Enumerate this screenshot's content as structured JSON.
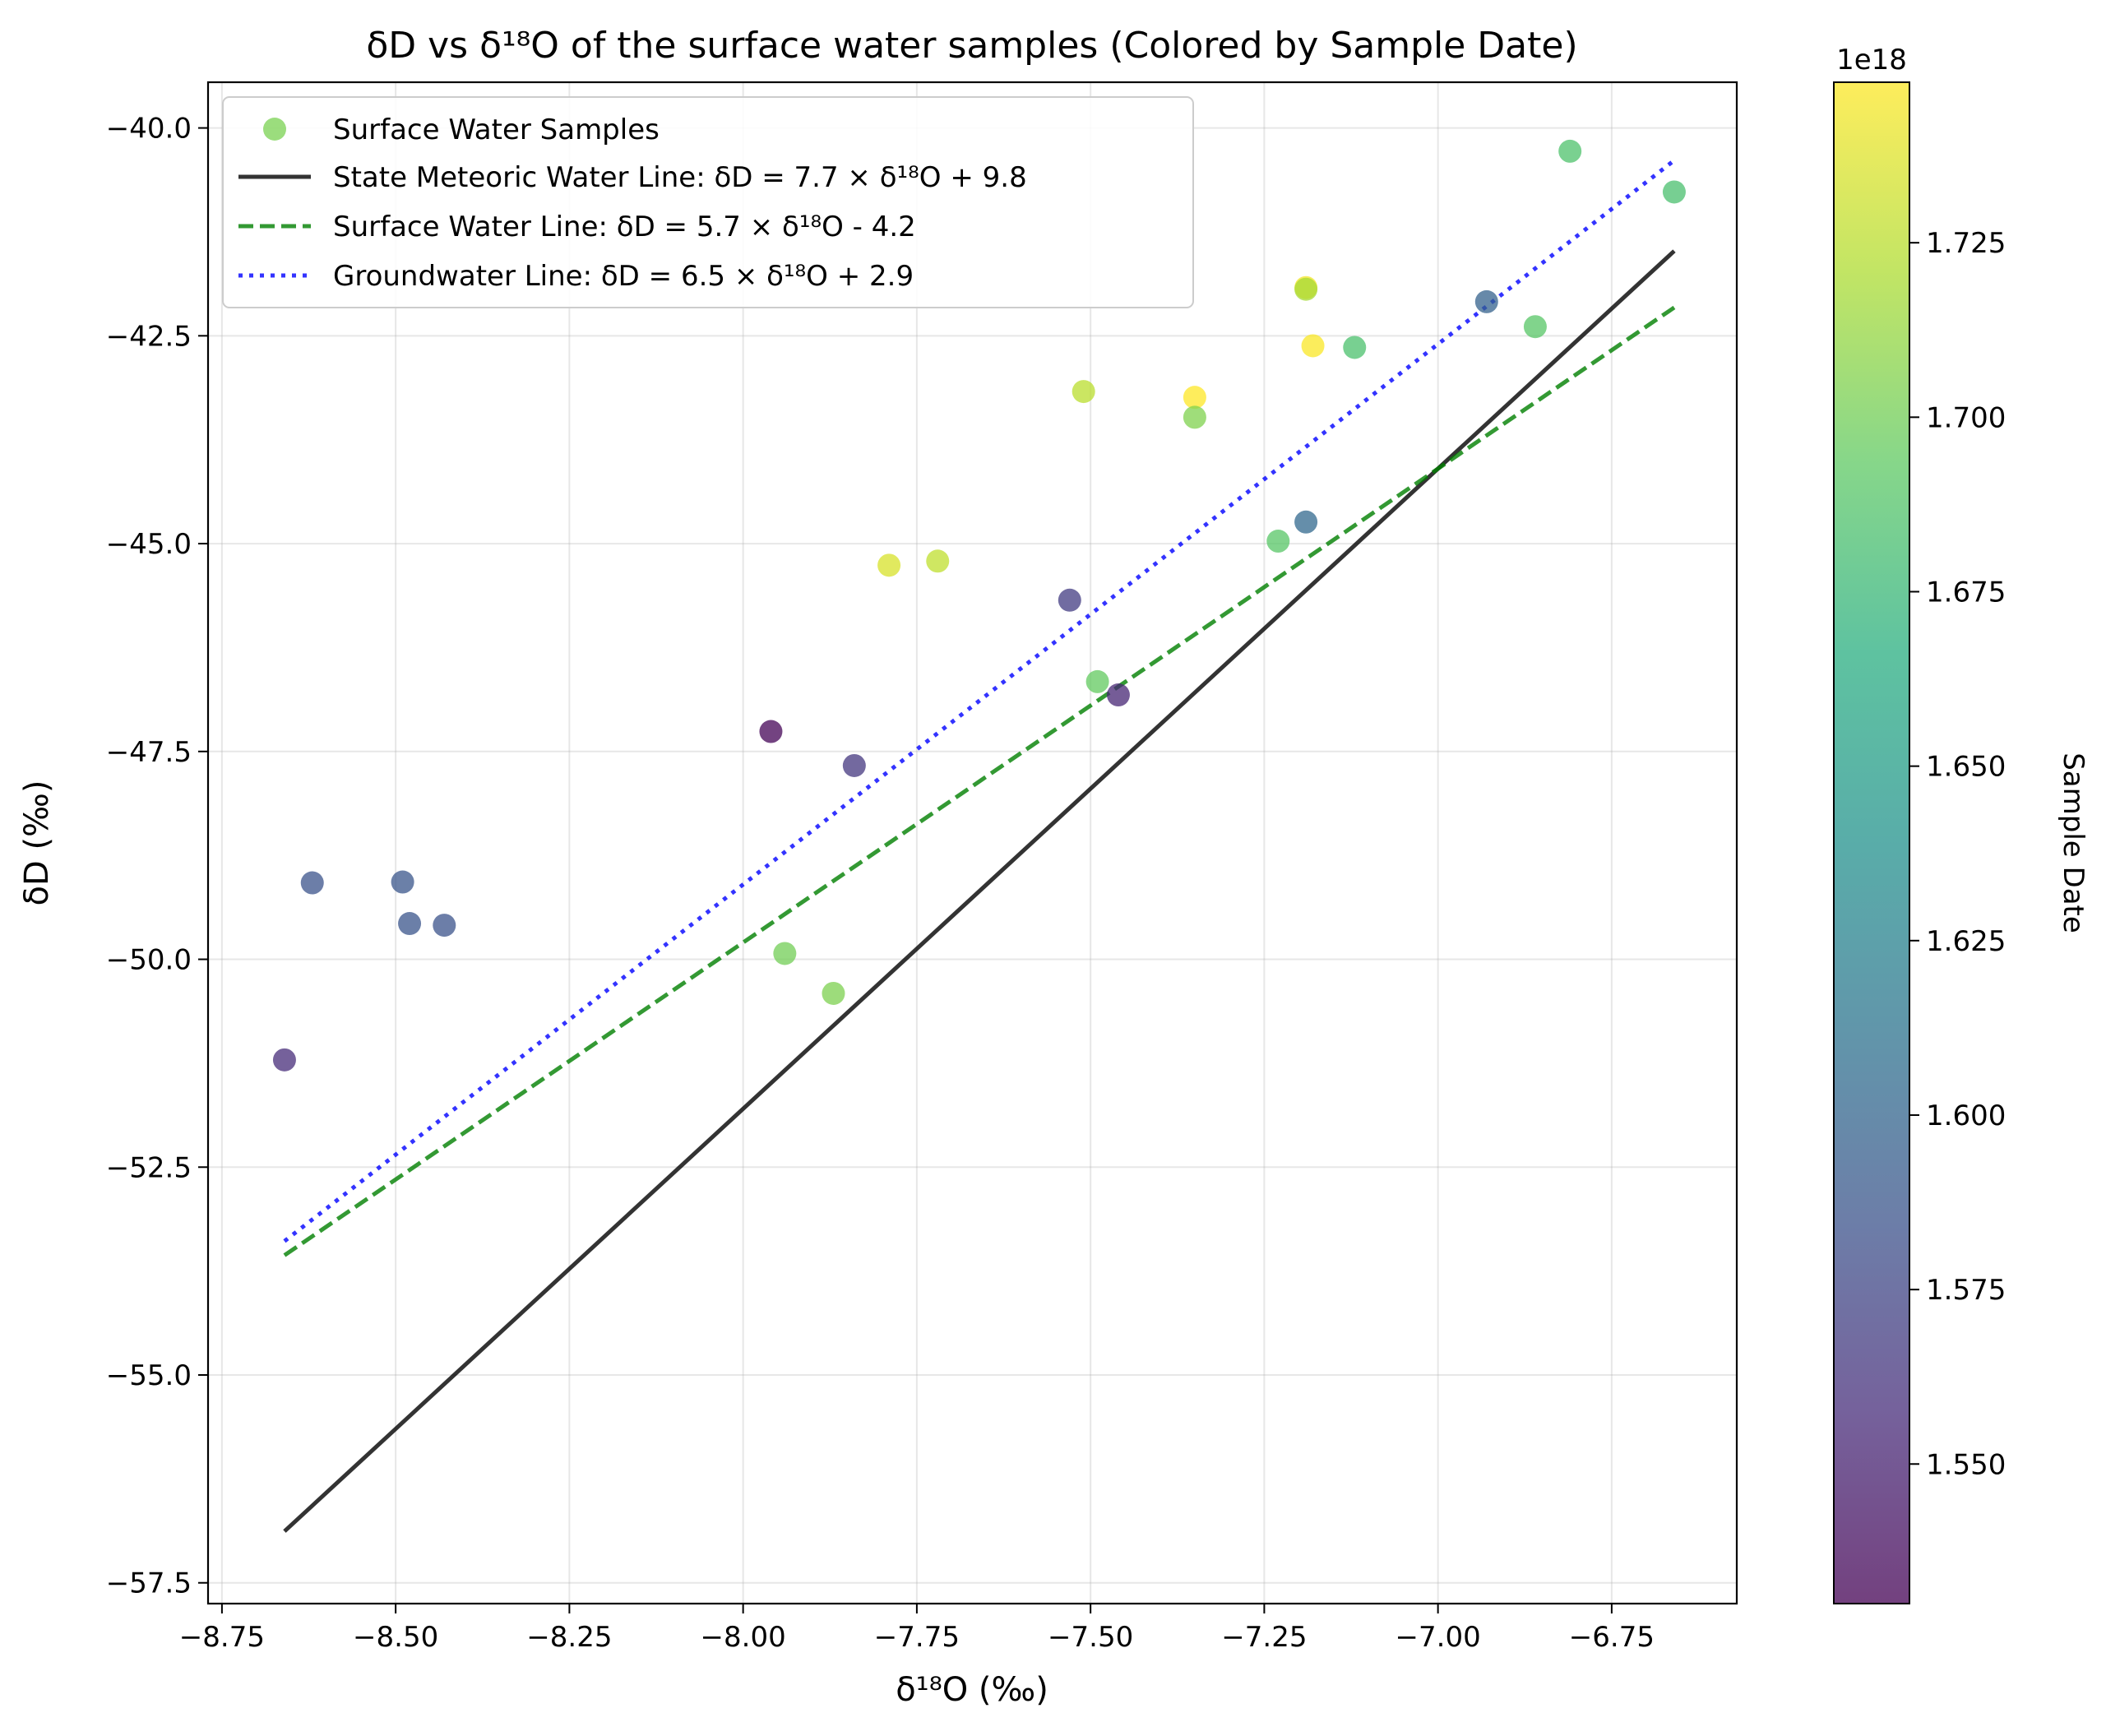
{
  "chart_data": {
    "type": "scatter",
    "title": "δD vs δ¹⁸O of the surface water samples (Colored by Sample Date)",
    "xlabel": "δ¹⁸O (‰)",
    "ylabel": "δD (‰)",
    "xlim": [
      -8.77,
      -6.57
    ],
    "ylim": [
      -57.75,
      -39.45
    ],
    "xticks": [
      -8.75,
      -8.5,
      -8.25,
      -8.0,
      -7.75,
      -7.5,
      -7.25,
      -7.0,
      -6.75
    ],
    "xtick_labels": [
      "−8.75",
      "−8.50",
      "−8.25",
      "−8.00",
      "−7.75",
      "−7.50",
      "−7.25",
      "−7.00",
      "−6.75"
    ],
    "yticks": [
      -57.5,
      -55.0,
      -52.5,
      -50.0,
      -47.5,
      -45.0,
      -42.5,
      -40.0
    ],
    "ytick_labels": [
      "−57.5",
      "−55.0",
      "−52.5",
      "−50.0",
      "−47.5",
      "−45.0",
      "−42.5",
      "−40.0"
    ],
    "grid": true,
    "legend_position": "top-left",
    "legend": [
      {
        "label": "Surface Water Samples",
        "style": "marker",
        "color": "#7ad151"
      },
      {
        "label": "State Meteoric Water Line: δD = 7.7 × δ¹⁸O + 9.8",
        "style": "solid",
        "color": "#000000"
      },
      {
        "label": "Surface Water Line: δD = 5.7 × δ¹⁸O - 4.2",
        "style": "dashed",
        "color": "#008000"
      },
      {
        "label": "Groundwater Line: δD = 6.5 × δ¹⁸O + 2.9",
        "style": "dotted",
        "color": "#0000ff"
      }
    ],
    "lines": [
      {
        "name": "State Meteoric Water Line",
        "x": [
          -8.66,
          -6.66
        ],
        "y": [
          -56.88,
          -41.48
        ],
        "color": "#000000",
        "dash": "solid"
      },
      {
        "name": "Surface Water Line",
        "x": [
          -8.66,
          -6.66
        ],
        "y": [
          -53.56,
          -42.16
        ],
        "color": "#008000",
        "dash": "dashed"
      },
      {
        "name": "Groundwater Line",
        "x": [
          -8.66,
          -6.66
        ],
        "y": [
          -53.39,
          -40.39
        ],
        "color": "#0000ff",
        "dash": "dotted"
      }
    ],
    "points": [
      {
        "x": -6.81,
        "y": -40.28,
        "c": 1.685
      },
      {
        "x": -6.66,
        "y": -40.77,
        "c": 1.683
      },
      {
        "x": -6.93,
        "y": -42.09,
        "c": 1.598
      },
      {
        "x": -6.86,
        "y": -42.39,
        "c": 1.69
      },
      {
        "x": -7.19,
        "y": -41.92,
        "c": 1.745
      },
      {
        "x": -7.19,
        "y": -41.94,
        "c": 1.718
      },
      {
        "x": -7.18,
        "y": -42.62,
        "c": 1.747
      },
      {
        "x": -7.12,
        "y": -42.64,
        "c": 1.684
      },
      {
        "x": -7.51,
        "y": -43.17,
        "c": 1.725
      },
      {
        "x": -7.35,
        "y": -43.24,
        "c": 1.748
      },
      {
        "x": -7.35,
        "y": -43.48,
        "c": 1.705
      },
      {
        "x": -7.19,
        "y": -44.74,
        "c": 1.603
      },
      {
        "x": -7.23,
        "y": -44.97,
        "c": 1.69
      },
      {
        "x": -7.79,
        "y": -45.26,
        "c": 1.735
      },
      {
        "x": -7.72,
        "y": -45.21,
        "c": 1.727
      },
      {
        "x": -7.53,
        "y": -45.68,
        "c": 1.568
      },
      {
        "x": -7.49,
        "y": -46.66,
        "c": 1.695
      },
      {
        "x": -7.46,
        "y": -46.82,
        "c": 1.553
      },
      {
        "x": -7.96,
        "y": -47.26,
        "c": 1.532
      },
      {
        "x": -7.84,
        "y": -47.67,
        "c": 1.565
      },
      {
        "x": -8.62,
        "y": -49.08,
        "c": 1.585
      },
      {
        "x": -8.49,
        "y": -49.07,
        "c": 1.588
      },
      {
        "x": -8.48,
        "y": -49.57,
        "c": 1.586
      },
      {
        "x": -8.43,
        "y": -49.59,
        "c": 1.585
      },
      {
        "x": -7.94,
        "y": -49.93,
        "c": 1.7
      },
      {
        "x": -7.87,
        "y": -50.41,
        "c": 1.704
      },
      {
        "x": -8.66,
        "y": -51.21,
        "c": 1.557
      }
    ],
    "colorbar": {
      "label": "Sample Date",
      "offset_label": "1e18",
      "range": [
        1.53,
        1.748
      ],
      "ticks": [
        1.55,
        1.575,
        1.6,
        1.625,
        1.65,
        1.675,
        1.7,
        1.725
      ],
      "tick_labels": [
        "1.550",
        "1.575",
        "1.600",
        "1.625",
        "1.650",
        "1.675",
        "1.700",
        "1.725"
      ],
      "colormap": "viridis"
    }
  }
}
